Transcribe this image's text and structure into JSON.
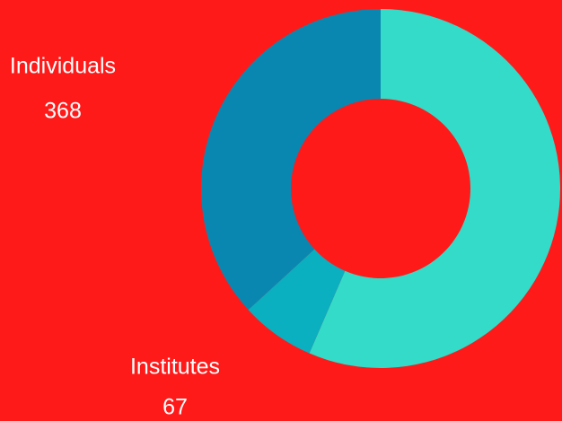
{
  "chart_data": {
    "type": "donut",
    "categories": [
      null,
      "Institutes",
      "Individuals"
    ],
    "values": [
      565,
      67,
      368
    ],
    "colors": [
      "#33dbc8",
      "#0aafc0",
      "#0a87b0"
    ],
    "background": "#ff1a1a"
  }
}
